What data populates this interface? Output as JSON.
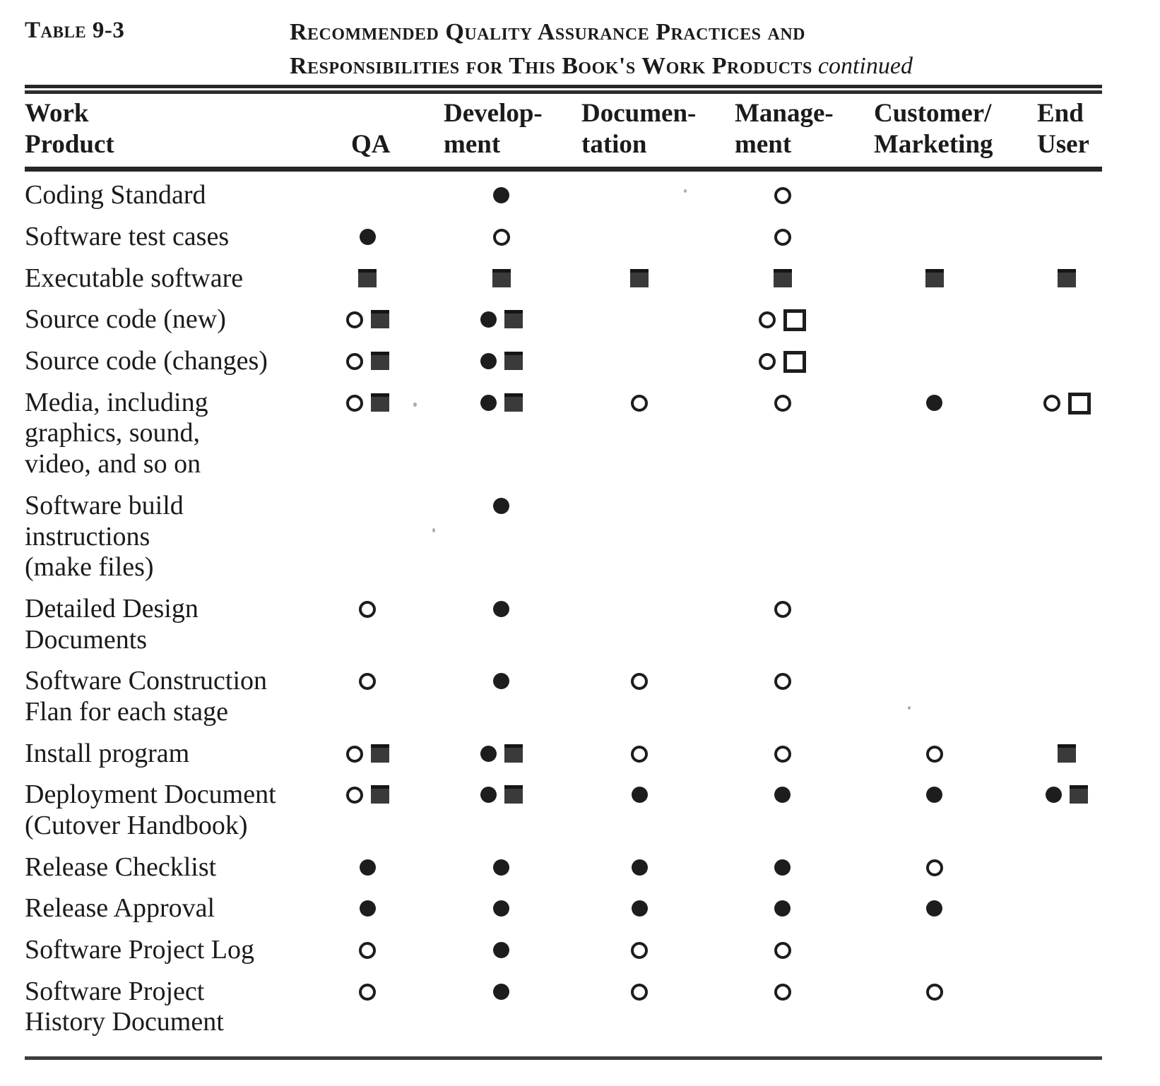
{
  "document": {
    "table_label": "Table 9-3",
    "title_line1": "Recommended Quality Assurance Practices and",
    "title_line2": "Responsibilities for This Book's Work Products",
    "title_continued": "continued"
  },
  "colors": {
    "ink": "#1b1b1b",
    "square_fill": "#3a3a3a",
    "paper": "#ffffff"
  },
  "symbols": {
    "filled-circle": "●",
    "open-circle": "○",
    "filled-square": "■",
    "open-square": "□"
  },
  "table": {
    "columns": [
      {
        "id": "work-product",
        "label": "Work\nProduct"
      },
      {
        "id": "qa",
        "label": "QA"
      },
      {
        "id": "development",
        "label": "Develop-\nment"
      },
      {
        "id": "documentation",
        "label": "Documen-\ntation"
      },
      {
        "id": "management",
        "label": "Manage-\nment"
      },
      {
        "id": "customer-marketing",
        "label": "Customer/\nMarketing"
      },
      {
        "id": "end-user",
        "label": "End\nUser"
      }
    ],
    "rows": [
      {
        "label": "Coding Standard",
        "cells": [
          [],
          [
            "filled-circle"
          ],
          [],
          [
            "open-circle"
          ],
          [],
          []
        ]
      },
      {
        "label": "Software test cases",
        "cells": [
          [
            "filled-circle"
          ],
          [
            "open-circle"
          ],
          [],
          [
            "open-circle"
          ],
          [],
          []
        ]
      },
      {
        "label": "Executable software",
        "cells": [
          [
            "filled-square"
          ],
          [
            "filled-square"
          ],
          [
            "filled-square"
          ],
          [
            "filled-square"
          ],
          [
            "filled-square"
          ],
          [
            "filled-square"
          ]
        ]
      },
      {
        "label": "Source code (new)",
        "cells": [
          [
            "open-circle",
            "filled-square"
          ],
          [
            "filled-circle",
            "filled-square"
          ],
          [],
          [
            "open-circle",
            "open-square"
          ],
          [],
          []
        ]
      },
      {
        "label": "Source code (changes)",
        "cells": [
          [
            "open-circle",
            "filled-square"
          ],
          [
            "filled-circle",
            "filled-square"
          ],
          [],
          [
            "open-circle",
            "open-square"
          ],
          [],
          []
        ]
      },
      {
        "label": "Media, including\ngraphics, sound,\nvideo, and so on",
        "cells": [
          [
            "open-circle",
            "filled-square"
          ],
          [
            "filled-circle",
            "filled-square"
          ],
          [
            "open-circle"
          ],
          [
            "open-circle"
          ],
          [
            "filled-circle"
          ],
          [
            "open-circle",
            "open-square"
          ]
        ]
      },
      {
        "label": "Software  build\ninstructions\n(make files)",
        "cells": [
          [],
          [
            "filled-circle"
          ],
          [],
          [],
          [],
          []
        ]
      },
      {
        "label": "Detailed Design\nDocuments",
        "cells": [
          [
            "open-circle"
          ],
          [
            "filled-circle"
          ],
          [],
          [
            "open-circle"
          ],
          [],
          []
        ]
      },
      {
        "label": "Software  Construction\nFlan for each stage",
        "cells": [
          [
            "open-circle"
          ],
          [
            "filled-circle"
          ],
          [
            "open-circle"
          ],
          [
            "open-circle"
          ],
          [],
          []
        ]
      },
      {
        "label": "Install program",
        "cells": [
          [
            "open-circle",
            "filled-square"
          ],
          [
            "filled-circle",
            "filled-square"
          ],
          [
            "open-circle"
          ],
          [
            "open-circle"
          ],
          [
            "open-circle"
          ],
          [
            "filled-square"
          ]
        ]
      },
      {
        "label": "Deployment Document\n(Cutover  Handbook)",
        "cells": [
          [
            "open-circle",
            "filled-square"
          ],
          [
            "filled-circle",
            "filled-square"
          ],
          [
            "filled-circle"
          ],
          [
            "filled-circle"
          ],
          [
            "filled-circle"
          ],
          [
            "filled-circle",
            "filled-square"
          ]
        ]
      },
      {
        "label": "Release  Checklist",
        "cells": [
          [
            "filled-circle"
          ],
          [
            "filled-circle"
          ],
          [
            "filled-circle"
          ],
          [
            "filled-circle"
          ],
          [
            "open-circle"
          ],
          []
        ]
      },
      {
        "label": "Release  Approval",
        "cells": [
          [
            "filled-circle"
          ],
          [
            "filled-circle"
          ],
          [
            "filled-circle"
          ],
          [
            "filled-circle"
          ],
          [
            "filled-circle"
          ],
          []
        ]
      },
      {
        "label": "Software Project Log",
        "cells": [
          [
            "open-circle"
          ],
          [
            "filled-circle"
          ],
          [
            "open-circle"
          ],
          [
            "open-circle"
          ],
          [],
          []
        ]
      },
      {
        "label": "Software Project\nHistory Document",
        "cells": [
          [
            "open-circle"
          ],
          [
            "filled-circle"
          ],
          [
            "open-circle"
          ],
          [
            "open-circle"
          ],
          [
            "open-circle"
          ],
          []
        ]
      }
    ]
  }
}
